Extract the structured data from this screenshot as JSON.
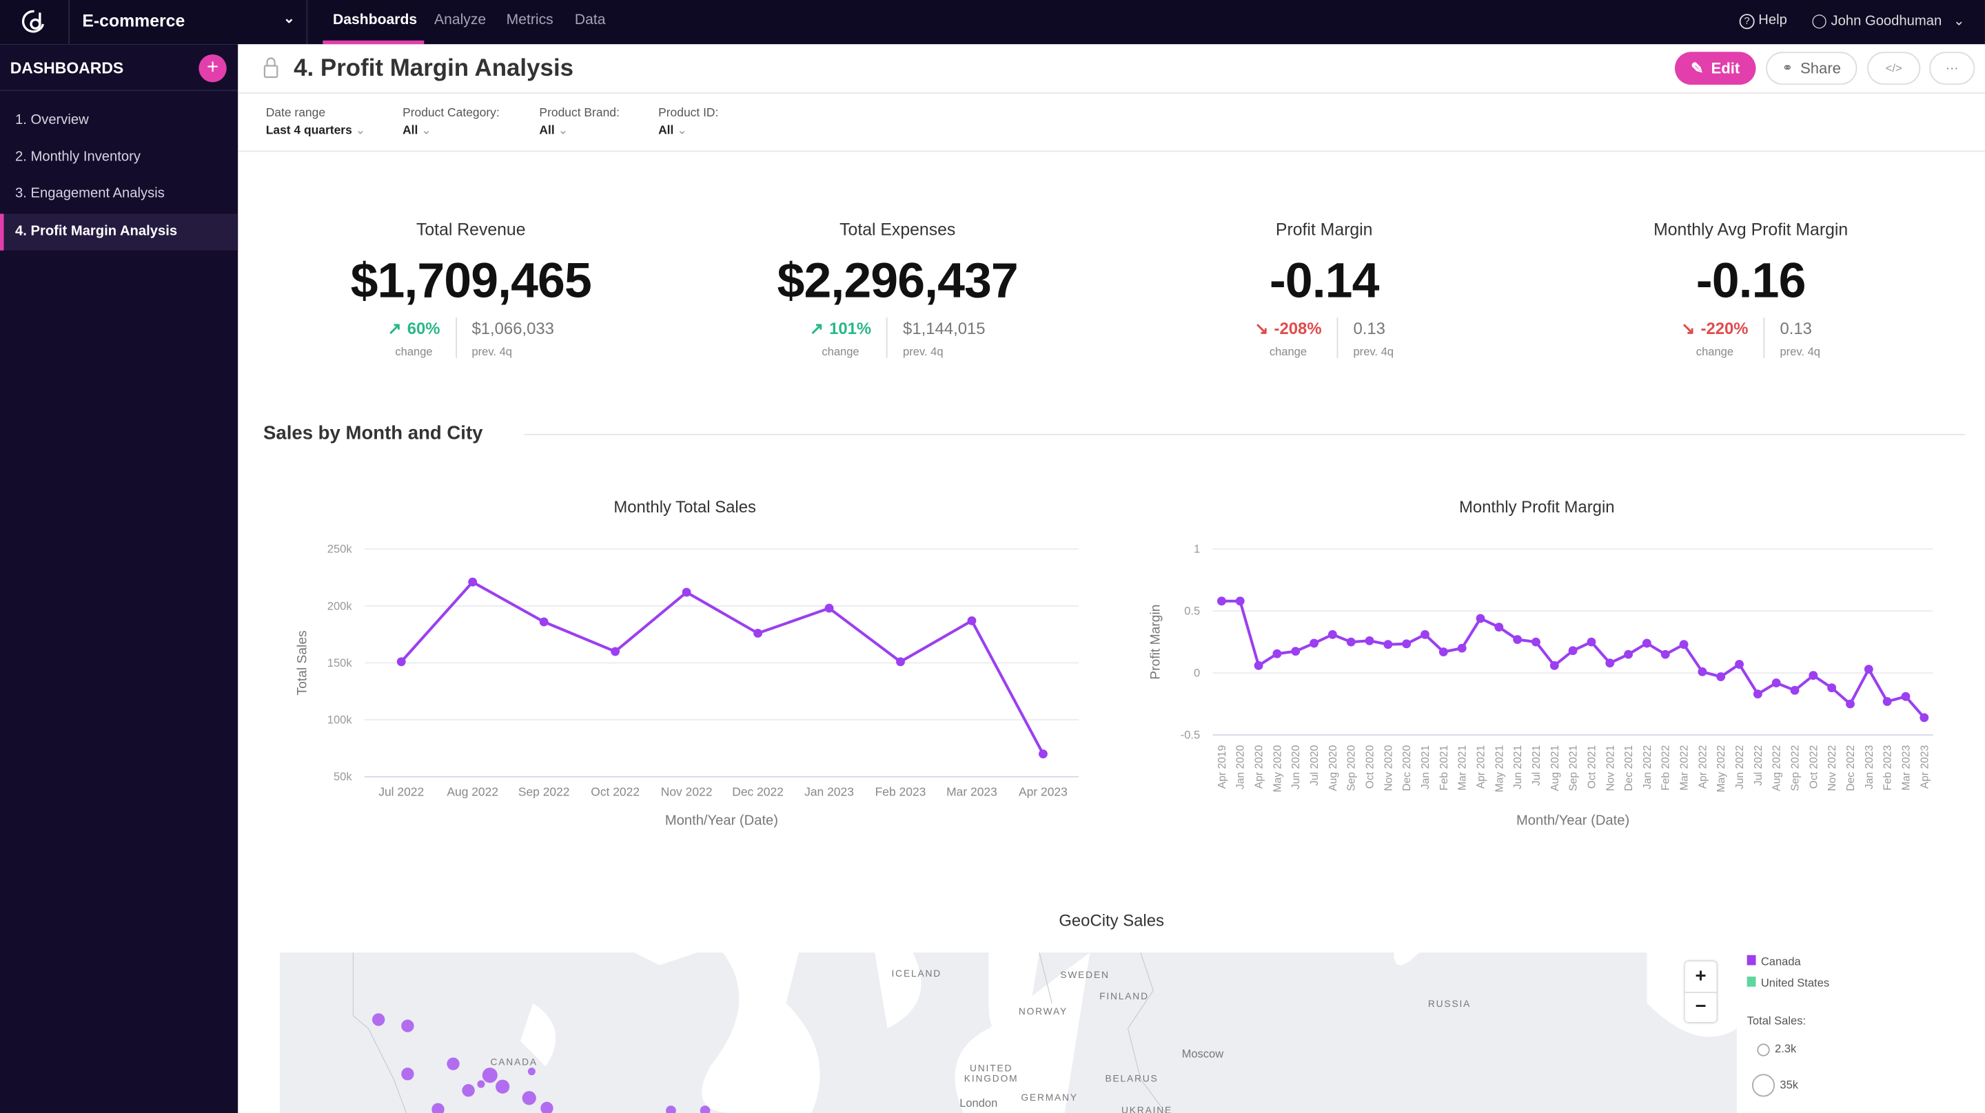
{
  "topbar": {
    "workspace": "E-commerce",
    "tabs": [
      "Dashboards",
      "Analyze",
      "Metrics",
      "Data"
    ],
    "active_tab": "Dashboards",
    "help": "Help",
    "user": "John Goodhuman"
  },
  "sidebar": {
    "title": "DASHBOARDS",
    "items": [
      "1. Overview",
      "2. Monthly Inventory",
      "3. Engagement Analysis",
      "4. Profit Margin Analysis"
    ],
    "active_index": 3
  },
  "page": {
    "title": "4. Profit Margin Analysis",
    "edit": "Edit",
    "share": "Share",
    "embed": "</>",
    "more": "···"
  },
  "filters": [
    {
      "label": "Date range",
      "value": "Last 4 quarters"
    },
    {
      "label": "Product Category:",
      "value": "All"
    },
    {
      "label": "Product Brand:",
      "value": "All"
    },
    {
      "label": "Product ID:",
      "value": "All"
    }
  ],
  "kpis": [
    {
      "title": "Total Revenue",
      "value": "$1,709,465",
      "change": "60%",
      "direction": "up",
      "change_label": "change",
      "prev": "$1,066,033",
      "prev_label": "prev. 4q"
    },
    {
      "title": "Total Expenses",
      "value": "$2,296,437",
      "change": "101%",
      "direction": "up",
      "change_label": "change",
      "prev": "$1,144,015",
      "prev_label": "prev. 4q"
    },
    {
      "title": "Profit Margin",
      "value": "-0.14",
      "change": "-208%",
      "direction": "down",
      "change_label": "change",
      "prev": "0.13",
      "prev_label": "prev. 4q"
    },
    {
      "title": "Monthly Avg Profit Margin",
      "value": "-0.16",
      "change": "-220%",
      "direction": "down",
      "change_label": "change",
      "prev": "0.13",
      "prev_label": "prev. 4q"
    }
  ],
  "section_title": "Sales by Month and City",
  "colors": {
    "accent": "#e23fad",
    "series": "#9b3ff0",
    "canada": "#9b3ff0",
    "united_states": "#5fd6a0",
    "up": "#28b889",
    "down": "#e04b4b"
  },
  "chart_data": [
    {
      "type": "line",
      "title": "Monthly Total Sales",
      "xlabel": "Month/Year (Date)",
      "ylabel": "Total Sales",
      "ylim": [
        50000,
        250000
      ],
      "yticks": [
        "50k",
        "100k",
        "150k",
        "200k",
        "250k"
      ],
      "grid": true,
      "categories": [
        "Jul 2022",
        "Aug 2022",
        "Sep 2022",
        "Oct 2022",
        "Nov 2022",
        "Dec 2022",
        "Jan 2023",
        "Feb 2023",
        "Mar 2023",
        "Apr 2023"
      ],
      "values": [
        151000,
        221000,
        186000,
        160000,
        212000,
        176000,
        198000,
        151000,
        187000,
        70000
      ]
    },
    {
      "type": "line",
      "title": "Monthly Profit Margin",
      "xlabel": "Month/Year (Date)",
      "ylabel": "Profit Margin",
      "ylim": [
        -0.5,
        1
      ],
      "yticks": [
        "-0.5",
        "0",
        "0.5",
        "1"
      ],
      "grid": true,
      "categories": [
        "Apr 2019",
        "Jan 2020",
        "Apr 2020",
        "May 2020",
        "Jun 2020",
        "Jul 2020",
        "Aug 2020",
        "Sep 2020",
        "Oct 2020",
        "Nov 2020",
        "Dec 2020",
        "Jan 2021",
        "Feb 2021",
        "Mar 2021",
        "Apr 2021",
        "May 2021",
        "Jun 2021",
        "Jul 2021",
        "Aug 2021",
        "Sep 2021",
        "Oct 2021",
        "Nov 2021",
        "Dec 2021",
        "Jan 2022",
        "Feb 2022",
        "Mar 2022",
        "Apr 2022",
        "May 2022",
        "Jun 2022",
        "Jul 2022",
        "Aug 2022",
        "Sep 2022",
        "Oct 2022",
        "Nov 2022",
        "Dec 2022",
        "Jan 2023",
        "Feb 2023",
        "Mar 2023",
        "Apr 2023"
      ],
      "values": [
        0.58,
        0.58,
        0.06,
        0.155,
        0.175,
        0.24,
        0.31,
        0.25,
        0.26,
        0.23,
        0.235,
        0.31,
        0.17,
        0.2,
        0.44,
        0.37,
        0.27,
        0.25,
        0.06,
        0.18,
        0.25,
        0.08,
        0.15,
        0.24,
        0.15,
        0.23,
        0.01,
        -0.03,
        0.07,
        -0.17,
        -0.08,
        -0.14,
        -0.02,
        -0.12,
        -0.25,
        0.03,
        -0.23,
        -0.19,
        -0.36
      ]
    }
  ],
  "map": {
    "title": "GeoCity Sales",
    "labels": [
      "ICELAND",
      "SWEDEN",
      "FINLAND",
      "NORWAY",
      "RUSSIA",
      "CANADA",
      "Moscow",
      "UNITED",
      "KINGDOM",
      "BELARUS",
      "GERMANY",
      "London",
      "UKRAINE"
    ],
    "legend": {
      "series": [
        "Canada",
        "United States"
      ],
      "size_title": "Total Sales:",
      "sizes": [
        "2.3k",
        "35k"
      ]
    },
    "zoom_in": "+",
    "zoom_out": "−"
  }
}
